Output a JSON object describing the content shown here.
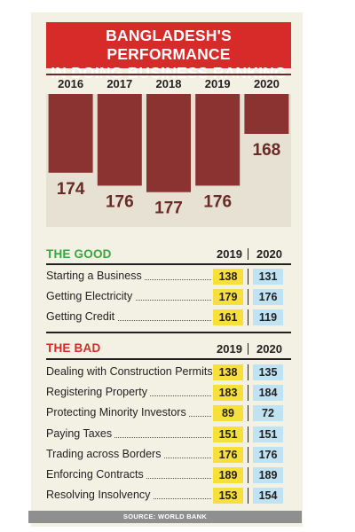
{
  "title_line1": "BANGLADESH'S PERFORMANCE",
  "title_line2": "IN DOING BUSINESS RANKING",
  "chart_data": {
    "type": "bar",
    "categories": [
      "2016",
      "2017",
      "2018",
      "2019",
      "2020"
    ],
    "values": [
      174,
      176,
      177,
      176,
      168
    ],
    "orientation": "hanging-down",
    "bar_color": "#8b3330",
    "label_color": "#6b2a27"
  },
  "the_good": {
    "label": "THE GOOD",
    "col_2019": "2019",
    "col_2020": "2020",
    "rows": [
      {
        "name": "Starting a Business",
        "v2019": "138",
        "v2020": "131"
      },
      {
        "name": "Getting Electricity",
        "v2019": "179",
        "v2020": "176"
      },
      {
        "name": "Getting Credit",
        "v2019": "161",
        "v2020": "119"
      }
    ]
  },
  "the_bad": {
    "label": "THE BAD",
    "col_2019": "2019",
    "col_2020": "2020",
    "rows": [
      {
        "name": "Dealing with Construction Permits",
        "v2019": "138",
        "v2020": "135"
      },
      {
        "name": "Registering Property",
        "v2019": "183",
        "v2020": "184"
      },
      {
        "name": "Protecting Minority Investors",
        "v2019": "89",
        "v2020": "72"
      },
      {
        "name": "Paying Taxes",
        "v2019": "151",
        "v2020": "151"
      },
      {
        "name": "Trading across Borders",
        "v2019": "176",
        "v2020": "176"
      },
      {
        "name": "Enforcing Contracts",
        "v2019": "189",
        "v2020": "189"
      },
      {
        "name": "Resolving Insolvency",
        "v2019": "153",
        "v2020": "154"
      }
    ]
  },
  "source": "SOURCE: WORLD BANK",
  "colors": {
    "title_bg": "#d62b29",
    "good": "#3aa63f",
    "bad": "#d62b29",
    "highlight_2019": "#f7e03b",
    "highlight_2020": "#bfe3f2",
    "panel_bg": "#f3f0e4"
  }
}
